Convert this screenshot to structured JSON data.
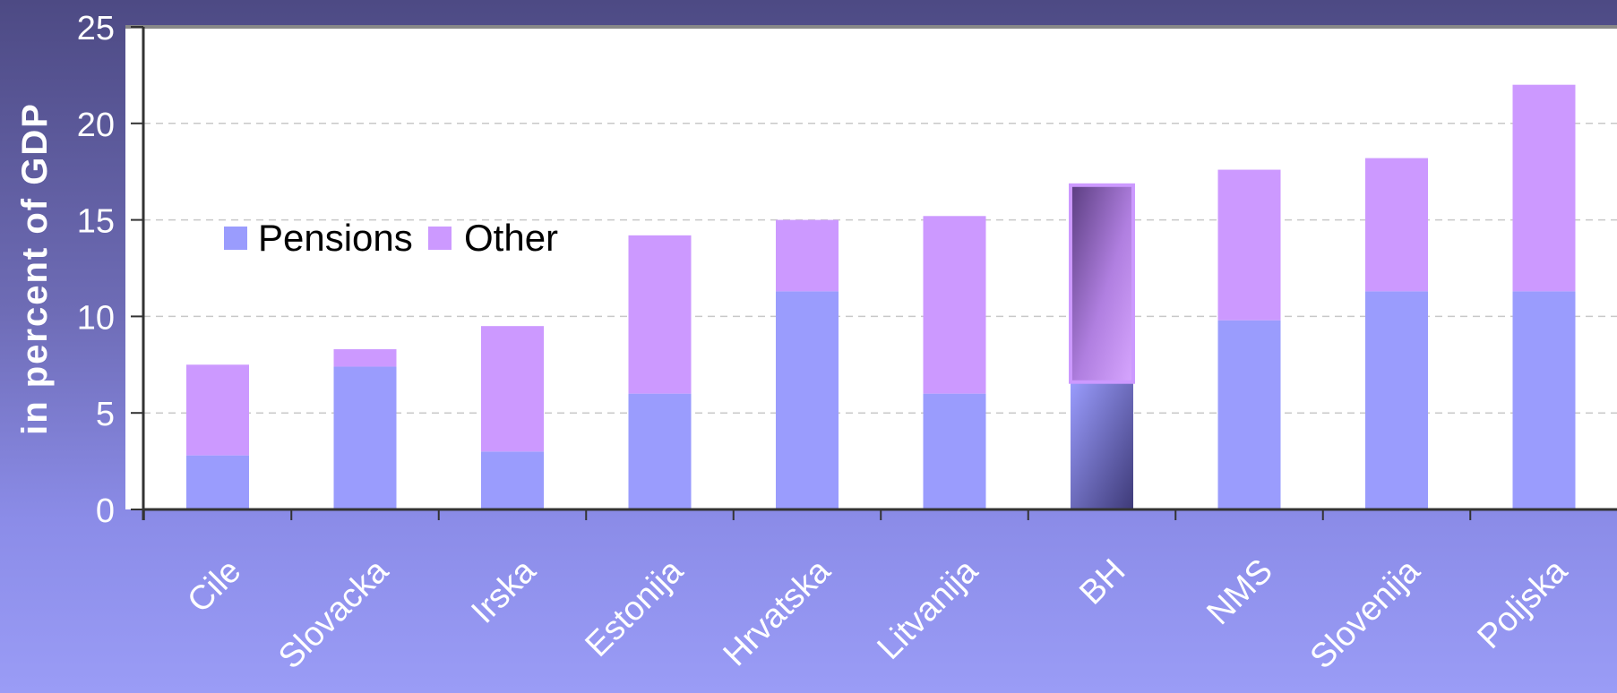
{
  "chart_data": {
    "type": "bar",
    "stacked": true,
    "categories": [
      "Cile",
      "Slovacka",
      "Irska",
      "Estonija",
      "Hrvatska",
      "Litvanija",
      "BH",
      "NMS",
      "Slovenija",
      "Poljska"
    ],
    "series": [
      {
        "name": "Pensions",
        "values": [
          2.8,
          7.4,
          3.0,
          6.0,
          11.3,
          6.0,
          6.6,
          9.8,
          11.3,
          11.3
        ]
      },
      {
        "name": "Other",
        "values": [
          4.7,
          0.9,
          6.5,
          8.2,
          3.7,
          9.2,
          10.2,
          7.8,
          6.9,
          10.7
        ]
      }
    ],
    "ylabel": "in percent of GDP",
    "xlabel": "",
    "ylim": [
      0,
      25
    ],
    "yticks": [
      "0",
      "5",
      "10",
      "15",
      "20",
      "25"
    ],
    "grid": true,
    "legend_placement": "top-left",
    "highlighted_category": "BH",
    "colors": {
      "pensions": "#9a9cfd",
      "other": "#cc99ff",
      "plot_background": "#ffffff",
      "gridline": "#c8c8c8",
      "axis": "#333333"
    }
  }
}
